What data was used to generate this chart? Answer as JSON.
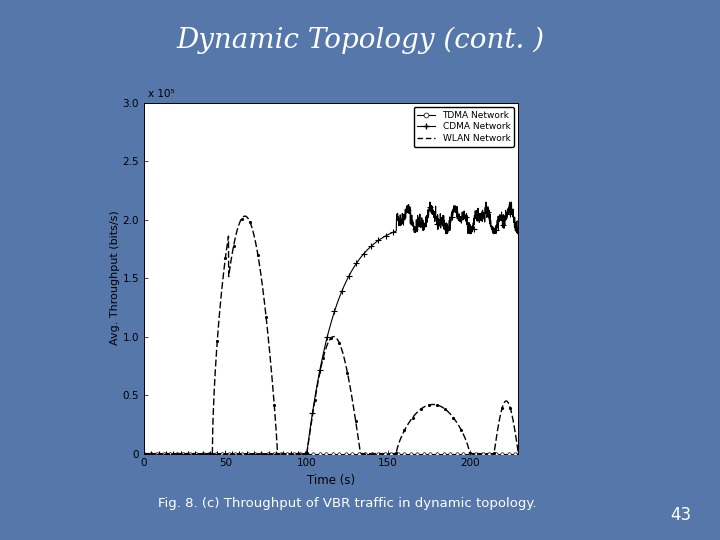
{
  "title": "Dynamic Topology (cont. )",
  "subtitle": "Fig. 8. (c) Throughput of VBR traffic in dynamic topology.",
  "page_number": "43",
  "xlabel": "Time (s)",
  "ylabel": "Avg. Throughput (bits/s)",
  "xlim": [
    0,
    230
  ],
  "ylim": [
    0,
    3.0
  ],
  "yticks": [
    0,
    0.5,
    1.0,
    1.5,
    2.0,
    2.5,
    3.0
  ],
  "xticks": [
    0,
    50,
    100,
    150,
    200
  ],
  "scale_label": "x 10⁵",
  "background_color": "#5577aa",
  "plot_bg": "#ffffff",
  "title_color": "#ffffff",
  "caption_color": "#ffffff",
  "legend": [
    "TDMA Network",
    "CDMA Network",
    "WLAN Network"
  ]
}
